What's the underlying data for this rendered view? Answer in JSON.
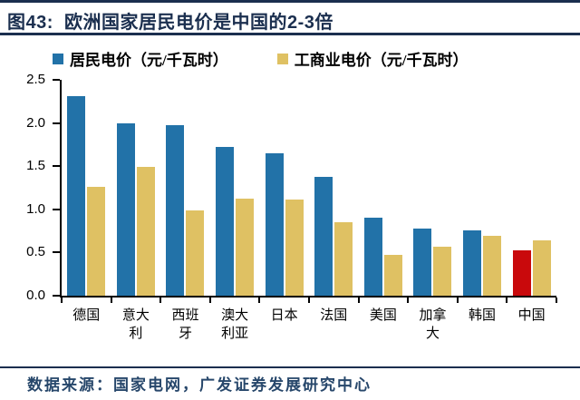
{
  "title": "图43:  欧洲国家居民电价是中国的2-3倍",
  "footer": {
    "source_text": "数据来源：国家电网，广发证券发展研究中心"
  },
  "colors": {
    "navy_accent": "#1b2f4f",
    "residential_blue": "#2272a8",
    "industrial_yellow": "#dfc163",
    "china_highlight_red": "#c9090c",
    "axis_black": "#000000"
  },
  "legend": [
    {
      "label": "居民电价（元/千瓦时）",
      "color": "#2272a8"
    },
    {
      "label": "工商业电价（元/千瓦时）",
      "color": "#dfc163"
    }
  ],
  "chart_data": {
    "type": "bar",
    "title": "欧洲国家居民电价是中国的2-3倍",
    "categories": [
      "德国",
      "意大利",
      "西班牙",
      "澳大利亚",
      "日本",
      "法国",
      "美国",
      "加拿大",
      "韩国",
      "中国"
    ],
    "series": [
      {
        "key": "residential-price",
        "name": "居民电价（元/千瓦时）",
        "color": "#2272a8",
        "values": [
          2.31,
          2.0,
          1.98,
          1.72,
          1.65,
          1.38,
          0.9,
          0.78,
          0.76,
          0.53
        ],
        "highlight": {
          "index": 9,
          "category": "中国",
          "color": "#c9090c"
        }
      },
      {
        "key": "industrial-price",
        "name": "工商业电价（元/千瓦时）",
        "color": "#dfc163",
        "values": [
          1.26,
          1.49,
          0.99,
          1.12,
          1.11,
          0.85,
          0.47,
          0.57,
          0.69,
          0.64
        ]
      }
    ],
    "xlabel": "",
    "ylabel": "",
    "ylim": [
      0,
      2.5
    ],
    "yticks": [
      0.0,
      0.5,
      1.0,
      1.5,
      2.0,
      2.5
    ],
    "ytick_labels": [
      "0.0",
      "0.5",
      "1.0",
      "1.5",
      "2.0",
      "2.5"
    ],
    "grid": false,
    "legend_position": "top"
  }
}
